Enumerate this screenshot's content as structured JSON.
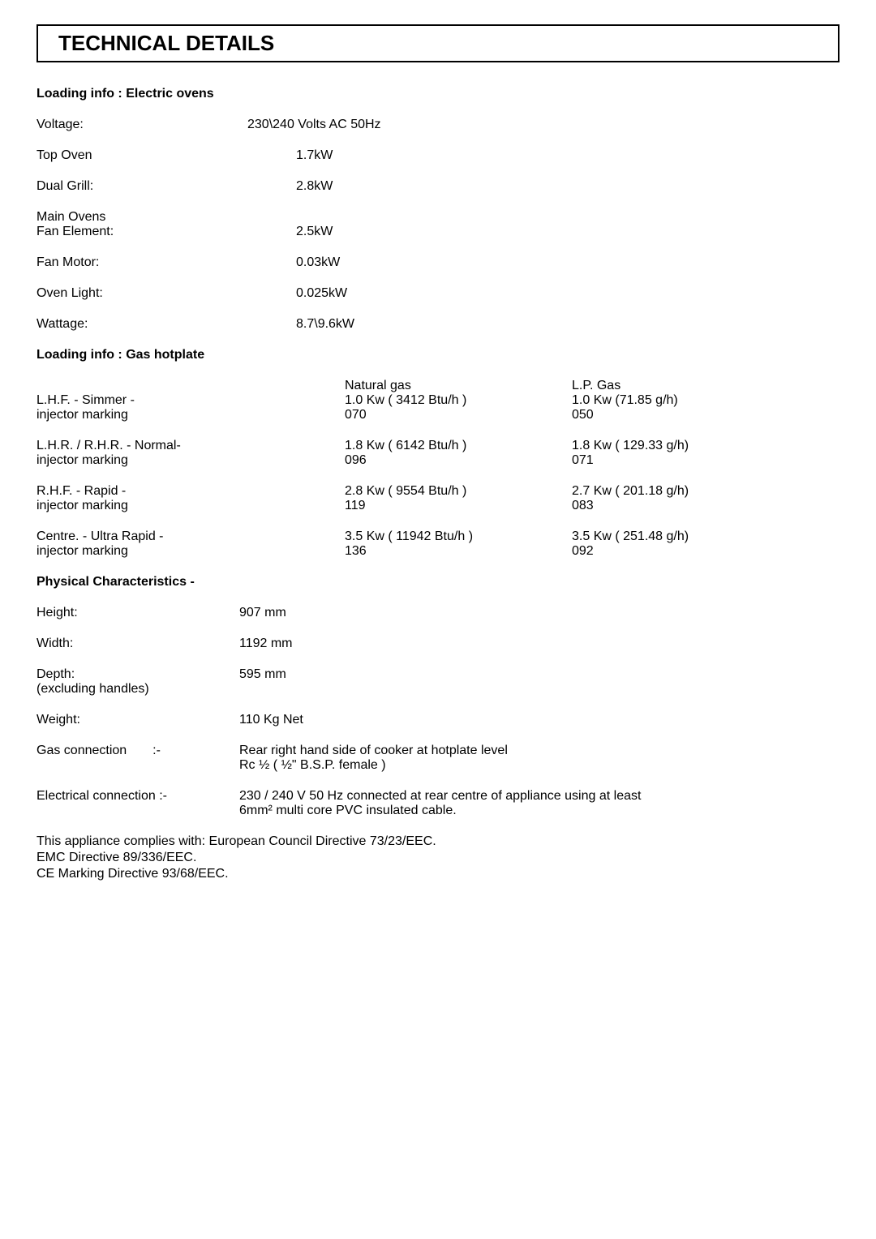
{
  "title": "TECHNICAL DETAILS",
  "electric": {
    "heading": "Loading info : Electric ovens",
    "rows": [
      {
        "label": "Voltage:",
        "value": "230\\240 Volts AC 50Hz",
        "value_indent": 0
      },
      {
        "label": "Top Oven",
        "value": "1.7kW",
        "value_indent": 60
      },
      {
        "label": "Dual Grill:",
        "value": "2.8kW",
        "value_indent": 60
      },
      {
        "label": "Main Ovens\nFan Element:",
        "value": "2.5kW",
        "value_indent": 60
      },
      {
        "label": "Fan Motor:",
        "value": "0.03kW",
        "value_indent": 60
      },
      {
        "label": "Oven Light:",
        "value": "0.025kW",
        "value_indent": 60
      },
      {
        "label": "Wattage:",
        "value": "8.7\\9.6kW",
        "value_indent": 60
      }
    ]
  },
  "gas": {
    "heading": "Loading info : Gas hotplate",
    "header": {
      "left": "",
      "mid": "Natural gas",
      "right": "L.P. Gas"
    },
    "rows": [
      {
        "left_l1": "L.H.F. - Simmer -",
        "left_l2": "injector marking",
        "mid_l1": "1.0 Kw ( 3412 Btu/h )",
        "mid_l2": "070",
        "right_l1": "1.0 Kw (71.85 g/h)",
        "right_l2": "050"
      },
      {
        "left_l1": "L.H.R. / R.H.R. - Normal-",
        "left_l2": "injector marking",
        "mid_l1": "1.8 Kw ( 6142 Btu/h )",
        "mid_l2": "096",
        "right_l1": "1.8 Kw ( 129.33 g/h)",
        "right_l2": "071"
      },
      {
        "left_l1": "R.H.F. - Rapid -",
        "left_l2": "injector marking",
        "mid_l1": "2.8 Kw ( 9554 Btu/h )",
        "mid_l2": "119",
        "right_l1": "2.7 Kw ( 201.18 g/h)",
        "right_l2": "083"
      },
      {
        "left_l1": "Centre. - Ultra Rapid -",
        "left_l2": "injector marking",
        "mid_l1": "3.5 Kw ( 11942 Btu/h )",
        "mid_l2": "136",
        "right_l1": "3.5 Kw ( 251.48 g/h)",
        "right_l2": "092"
      }
    ]
  },
  "physical": {
    "heading": "Physical Characteristics -",
    "rows": [
      {
        "label": "Height:",
        "value": "907 mm"
      },
      {
        "label": "Width:",
        "value": "1192 mm"
      },
      {
        "label": "Depth:\n(excluding handles)",
        "value": "595 mm"
      },
      {
        "label": "Weight:",
        "value": "110 Kg Net"
      },
      {
        "label": "Gas connection  :-",
        "value": "Rear right hand side of cooker at hotplate level\nRc ½ ( ½\" B.S.P. female )"
      },
      {
        "label": "Electrical connection :-",
        "value": "230 / 240 V 50 Hz connected at rear centre of appliance using at least\n6mm² multi core PVC insulated cable."
      }
    ]
  },
  "footer": {
    "line1": "This appliance complies with: European Council Directive 73/23/EEC.",
    "line2": "EMC Directive 89/336/EEC.",
    "line3": "CE Marking Directive 93/68/EEC."
  },
  "styling": {
    "body_bg": "#ffffff",
    "text_color": "#000000",
    "title_fontsize": 26,
    "body_fontsize": 16,
    "border_color": "#000000",
    "border_width": 2
  }
}
